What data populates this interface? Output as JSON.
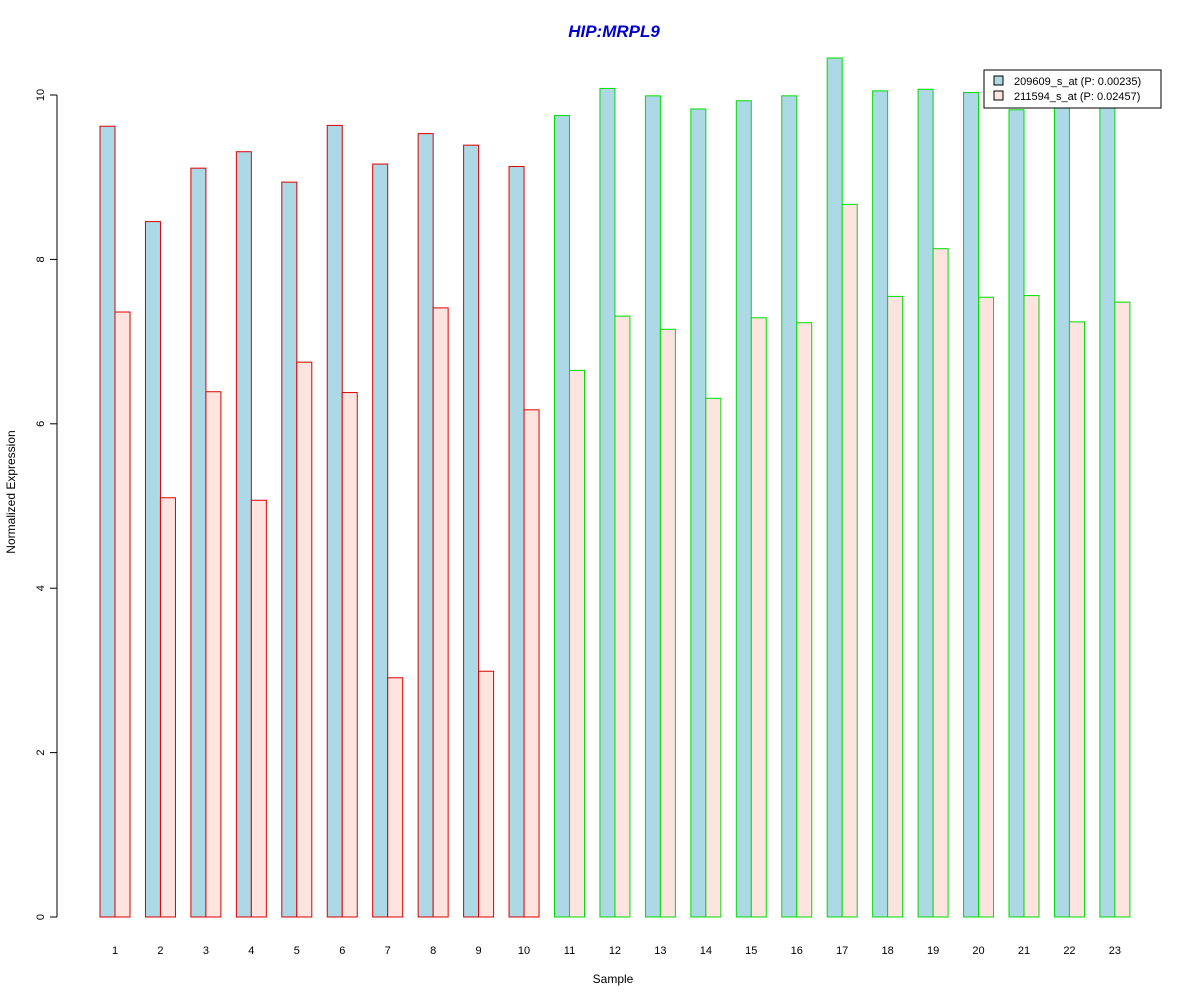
{
  "chart_data": {
    "type": "bar",
    "title": "HIP:MRPL9",
    "xlabel": "Sample",
    "ylabel": "Normalized Expression",
    "categories": [
      "1",
      "2",
      "3",
      "4",
      "5",
      "6",
      "7",
      "8",
      "9",
      "10",
      "11",
      "12",
      "13",
      "14",
      "15",
      "16",
      "17",
      "18",
      "19",
      "20",
      "21",
      "22",
      "23"
    ],
    "series": [
      {
        "name": "209609_s_at (P: 0.00235)",
        "fill": "#add8e6",
        "values": [
          9.62,
          8.46,
          9.11,
          9.31,
          8.94,
          9.63,
          9.16,
          9.53,
          9.39,
          9.13,
          9.75,
          10.08,
          9.99,
          9.83,
          9.93,
          9.99,
          10.45,
          10.05,
          10.07,
          10.03,
          9.82,
          9.85,
          9.85
        ]
      },
      {
        "name": "211594_s_at (P: 0.02457)",
        "fill": "#fde4de",
        "values": [
          7.36,
          5.1,
          6.39,
          5.07,
          6.75,
          6.38,
          2.91,
          7.41,
          2.99,
          6.17,
          6.65,
          7.31,
          7.15,
          6.31,
          7.29,
          7.23,
          8.67,
          7.55,
          8.13,
          7.54,
          7.56,
          7.24,
          7.48
        ]
      }
    ],
    "groups": [
      {
        "samples": [
          1,
          10
        ],
        "border": "#dd0000"
      },
      {
        "samples": [
          11,
          23
        ],
        "border": "#00dd00"
      }
    ],
    "ylim": [
      0,
      10.5
    ],
    "yticks": [
      0,
      2,
      4,
      6,
      8,
      10
    ],
    "ytick_labels": [
      "0",
      "2",
      "4",
      "6",
      "8",
      "10"
    ],
    "grid": false,
    "legend_position": "top-right",
    "colors": {
      "title": "#0000cc",
      "axis": "#000000"
    }
  }
}
